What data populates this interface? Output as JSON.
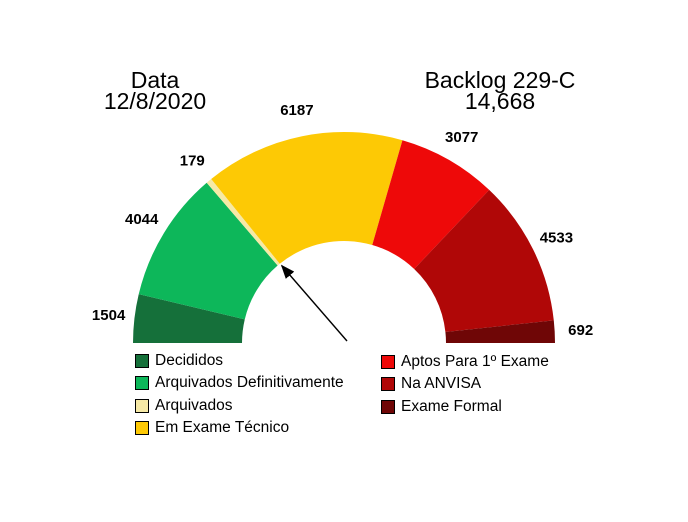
{
  "titles": {
    "left": {
      "line1": "Data",
      "line2": "12/8/2020"
    },
    "right": {
      "line1": "Backlog 229-C",
      "line2": "14,668"
    }
  },
  "chart_data": {
    "type": "pie",
    "variant": "half-donut-gauge",
    "title_left": "Data 12/8/2020",
    "title_right": "Backlog 229-C 14,668",
    "start_angle_deg": 180,
    "end_angle_deg": 0,
    "segments": [
      {
        "label": "Decididos",
        "value": 1504,
        "color": "#15703a"
      },
      {
        "label": "Arquivados Definitivamente",
        "value": 4044,
        "color": "#0db75a"
      },
      {
        "label": "Arquivados",
        "value": 179,
        "color": "#f6e9a6"
      },
      {
        "label": "Em Exame Técnico",
        "value": 6187,
        "color": "#fdc905"
      },
      {
        "label": "Aptos Para 1º Exame",
        "value": 3077,
        "color": "#ee0909"
      },
      {
        "label": "Na ANVISA",
        "value": 4533,
        "color": "#b00707"
      },
      {
        "label": "Exame Formal",
        "value": 692,
        "color": "#6f0606"
      }
    ],
    "legend_position": "bottom-two-columns",
    "legend_columns": [
      [
        0,
        1,
        2,
        3
      ],
      [
        4,
        5,
        6
      ]
    ],
    "annotation": {
      "type": "arrow",
      "description": "arrow pointing to inner boundary between Arquivados and Em Exame Técnico",
      "boundary_after_label": "Arquivados",
      "color": "#000000"
    }
  }
}
